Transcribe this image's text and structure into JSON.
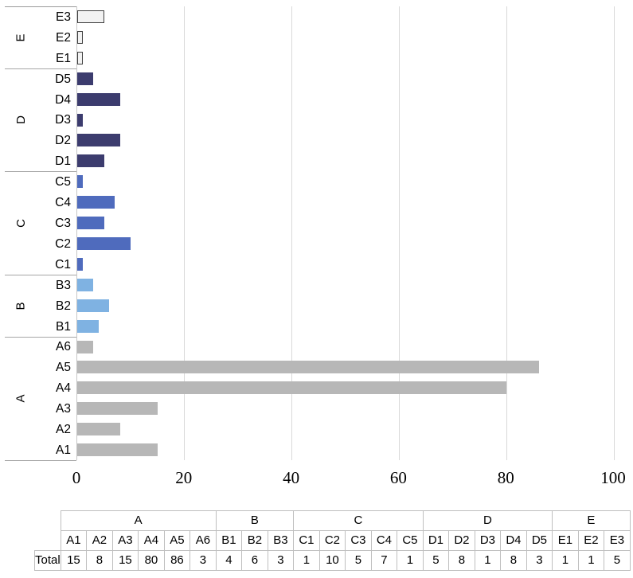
{
  "chart_data": {
    "type": "bar",
    "orientation": "horizontal",
    "title": "",
    "xlabel": "",
    "ylabel": "",
    "xlim": [
      0,
      100
    ],
    "xticks": [
      0,
      20,
      40,
      60,
      80,
      100
    ],
    "grid": true,
    "legend": false,
    "groups": [
      {
        "label": "E",
        "fill": "#f2f2f2",
        "border": "#3f3f3f",
        "items": [
          {
            "label": "E3",
            "value": 5
          },
          {
            "label": "E2",
            "value": 1
          },
          {
            "label": "E1",
            "value": 1
          }
        ]
      },
      {
        "label": "D",
        "fill": "#3c3c6e",
        "border": null,
        "items": [
          {
            "label": "D5",
            "value": 3
          },
          {
            "label": "D4",
            "value": 8
          },
          {
            "label": "D3",
            "value": 1
          },
          {
            "label": "D2",
            "value": 8
          },
          {
            "label": "D1",
            "value": 5
          }
        ]
      },
      {
        "label": "C",
        "fill": "#4f6bbd",
        "border": null,
        "items": [
          {
            "label": "C5",
            "value": 1
          },
          {
            "label": "C4",
            "value": 7
          },
          {
            "label": "C3",
            "value": 5
          },
          {
            "label": "C2",
            "value": 10
          },
          {
            "label": "C1",
            "value": 1
          }
        ]
      },
      {
        "label": "B",
        "fill": "#7fb2e2",
        "border": null,
        "items": [
          {
            "label": "B3",
            "value": 3
          },
          {
            "label": "B2",
            "value": 6
          },
          {
            "label": "B1",
            "value": 4
          }
        ]
      },
      {
        "label": "A",
        "fill": "#b7b7b7",
        "border": null,
        "items": [
          {
            "label": "A6",
            "value": 3
          },
          {
            "label": "A5",
            "value": 86
          },
          {
            "label": "A4",
            "value": 80
          },
          {
            "label": "A3",
            "value": 15
          },
          {
            "label": "A2",
            "value": 8
          },
          {
            "label": "A1",
            "value": 15
          }
        ]
      }
    ],
    "colors": {
      "gridline": "#d9d9d9",
      "axis_line": "#c6c6c6",
      "separator": "#a6a6a6",
      "table_border": "#bfbfbf"
    }
  },
  "table": {
    "row_label": "Total",
    "groups": [
      {
        "label": "A",
        "items": [
          "A1",
          "A2",
          "A3",
          "A4",
          "A5",
          "A6"
        ],
        "values": [
          15,
          8,
          15,
          80,
          86,
          3
        ]
      },
      {
        "label": "B",
        "items": [
          "B1",
          "B2",
          "B3"
        ],
        "values": [
          4,
          6,
          3
        ]
      },
      {
        "label": "C",
        "items": [
          "C1",
          "C2",
          "C3",
          "C4",
          "C5"
        ],
        "values": [
          1,
          10,
          5,
          7,
          1
        ]
      },
      {
        "label": "D",
        "items": [
          "D1",
          "D2",
          "D3",
          "D4",
          "D5"
        ],
        "values": [
          5,
          8,
          1,
          8,
          3
        ]
      },
      {
        "label": "E",
        "items": [
          "E1",
          "E2",
          "E3"
        ],
        "values": [
          1,
          1,
          5
        ]
      }
    ]
  }
}
